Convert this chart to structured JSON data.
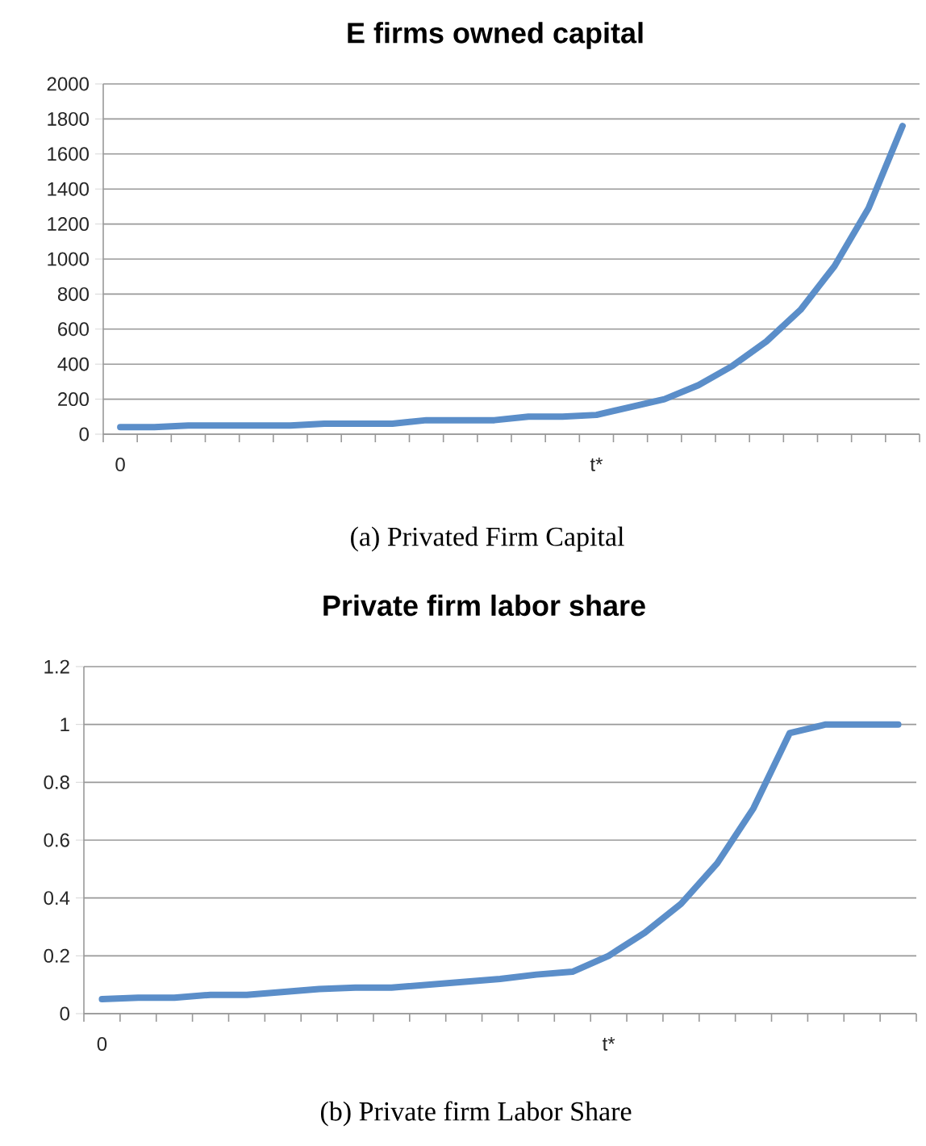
{
  "chart_data": [
    {
      "type": "line",
      "title": "E firms owned capital",
      "annotations": [
        "(a) Privated Firm Capital"
      ],
      "categories": [
        "0",
        null,
        null,
        null,
        null,
        null,
        null,
        null,
        null,
        null,
        null,
        null,
        null,
        null,
        "t*",
        null,
        null,
        null,
        null,
        null,
        null,
        null,
        null,
        null
      ],
      "values": [
        40,
        40,
        50,
        50,
        50,
        50,
        60,
        60,
        60,
        80,
        80,
        80,
        100,
        100,
        110,
        155,
        200,
        280,
        390,
        530,
        710,
        960,
        1290,
        1760
      ],
      "color": "#5b8ec9",
      "ylim": [
        0,
        2000
      ],
      "yticks": [
        0,
        200,
        400,
        600,
        800,
        1000,
        1200,
        1400,
        1600,
        1800,
        2000
      ],
      "grid": "y"
    },
    {
      "type": "line",
      "title": "Private firm labor share",
      "annotations": [
        "(b) Private firm Labor Share"
      ],
      "categories": [
        "0",
        null,
        null,
        null,
        null,
        null,
        null,
        null,
        null,
        null,
        null,
        null,
        null,
        null,
        "t*",
        null,
        null,
        null,
        null,
        null,
        null,
        null,
        null
      ],
      "values": [
        0.05,
        0.055,
        0.055,
        0.065,
        0.065,
        0.075,
        0.085,
        0.09,
        0.09,
        0.1,
        0.11,
        0.12,
        0.135,
        0.145,
        0.2,
        0.28,
        0.38,
        0.52,
        0.71,
        0.97,
        1.0,
        1.0,
        1.0
      ],
      "color": "#5b8ec9",
      "ylim": [
        0,
        1.2
      ],
      "yticks": [
        0,
        0.2,
        0.4,
        0.6,
        0.8,
        1,
        1.2
      ],
      "grid": "y"
    }
  ]
}
